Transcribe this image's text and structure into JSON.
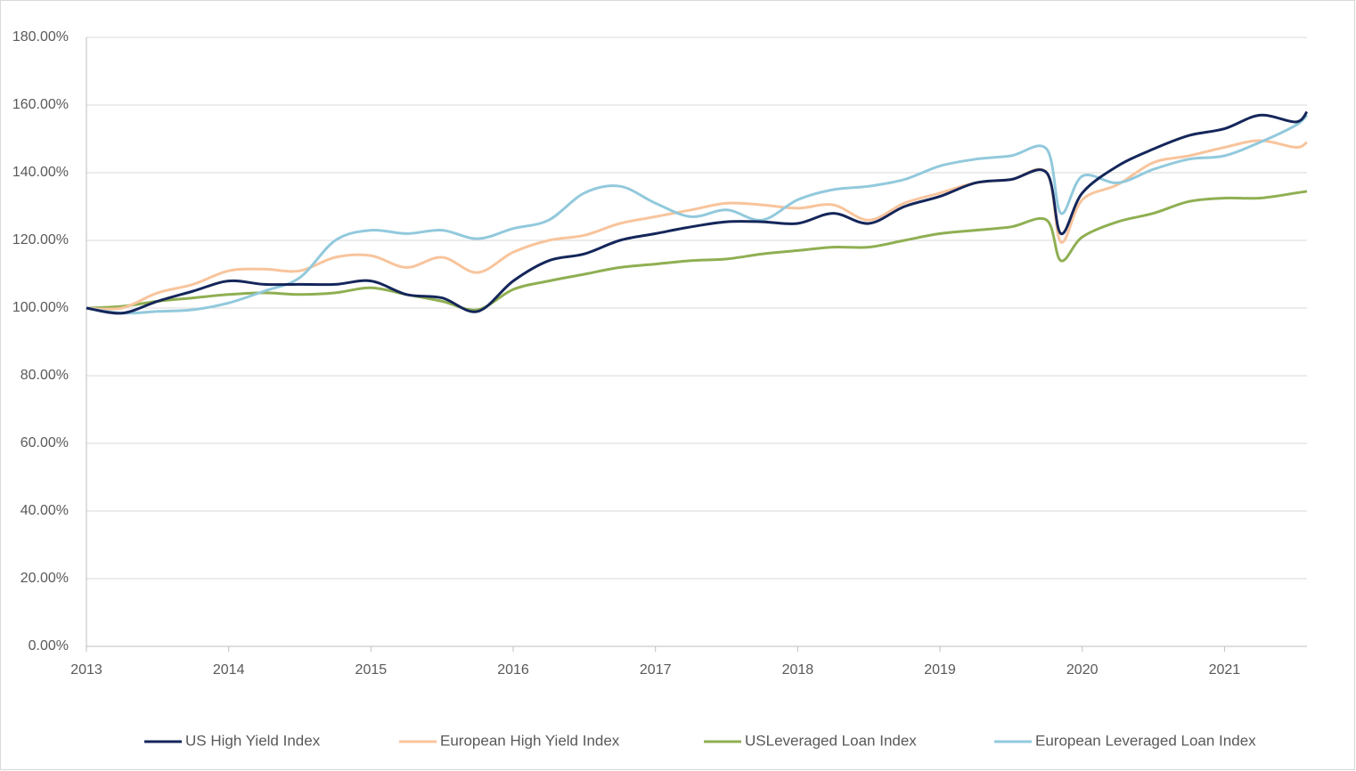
{
  "chart_data": {
    "type": "line",
    "x": [
      2013,
      2013.25,
      2013.5,
      2013.75,
      2014,
      2014.25,
      2014.5,
      2014.75,
      2015,
      2015.25,
      2015.5,
      2015.75,
      2016,
      2016.25,
      2016.5,
      2016.75,
      2017,
      2017.25,
      2017.5,
      2017.75,
      2018,
      2018.25,
      2018.5,
      2018.75,
      2019,
      2019.25,
      2019.5,
      2019.75,
      2019.85,
      2020,
      2020.25,
      2020.5,
      2020.75,
      2021,
      2021.25,
      2021.5,
      2021.58
    ],
    "series": [
      {
        "name": "US High Yield Index",
        "color": "#14265a",
        "values": [
          100,
          98.5,
          102,
          105,
          108,
          107,
          107,
          107,
          108,
          104,
          103,
          99,
          108,
          114,
          116,
          120,
          122,
          124,
          125.5,
          125.5,
          125,
          128,
          125,
          130,
          133,
          137,
          138,
          140,
          122,
          134,
          142,
          147,
          151,
          153,
          157,
          155,
          158
        ]
      },
      {
        "name": "European High Yield Index",
        "color": "#f8c49c",
        "values": [
          100,
          100,
          104.5,
          107,
          111,
          111.5,
          111,
          115,
          115.5,
          112,
          115,
          110.5,
          116.5,
          120,
          121.5,
          125,
          127,
          129,
          131,
          130.5,
          129.5,
          130.5,
          126,
          131,
          134,
          137,
          138,
          140,
          119.5,
          132,
          136.5,
          143,
          145,
          147.5,
          149.5,
          147.5,
          149
        ]
      },
      {
        "name": "USLeveraged Loan Index",
        "color": "#8faf52",
        "values": [
          100,
          100.5,
          102,
          103,
          104,
          104.5,
          104,
          104.5,
          106,
          104,
          102,
          99.5,
          105.5,
          108,
          110,
          112,
          113,
          114,
          114.5,
          116,
          117,
          118,
          118,
          120,
          122,
          123,
          124,
          126,
          114,
          121,
          125.5,
          128,
          131.5,
          132.5,
          132.5,
          134,
          134.5
        ]
      },
      {
        "name": "European Leveraged Loan Index",
        "color": "#92c9dc",
        "values": [
          100,
          98.5,
          99,
          99.5,
          101.5,
          105,
          109,
          120,
          123,
          122,
          123,
          120.5,
          123.5,
          126,
          134,
          136,
          131,
          127,
          129,
          126,
          132,
          135,
          136,
          138,
          142,
          144,
          145,
          147,
          128,
          139,
          137,
          141,
          144,
          145,
          149,
          154,
          157
        ]
      }
    ],
    "xlim": [
      2013,
      2021.58
    ],
    "xticks": [
      2013,
      2014,
      2015,
      2016,
      2017,
      2018,
      2019,
      2020,
      2021
    ],
    "ylim": [
      0,
      180
    ],
    "yticks": [
      {
        "value": 0,
        "label": "0.00%"
      },
      {
        "value": 20,
        "label": "20.00%"
      },
      {
        "value": 40,
        "label": "40.00%"
      },
      {
        "value": 60,
        "label": "60.00%"
      },
      {
        "value": 80,
        "label": "80.00%"
      },
      {
        "value": 100,
        "label": "100.00%"
      },
      {
        "value": 120,
        "label": "120.00%"
      },
      {
        "value": 140,
        "label": "140.00%"
      },
      {
        "value": 160,
        "label": "160.00%"
      },
      {
        "value": 180,
        "label": "180.00%"
      }
    ],
    "grid": true,
    "legend": "bottom"
  }
}
